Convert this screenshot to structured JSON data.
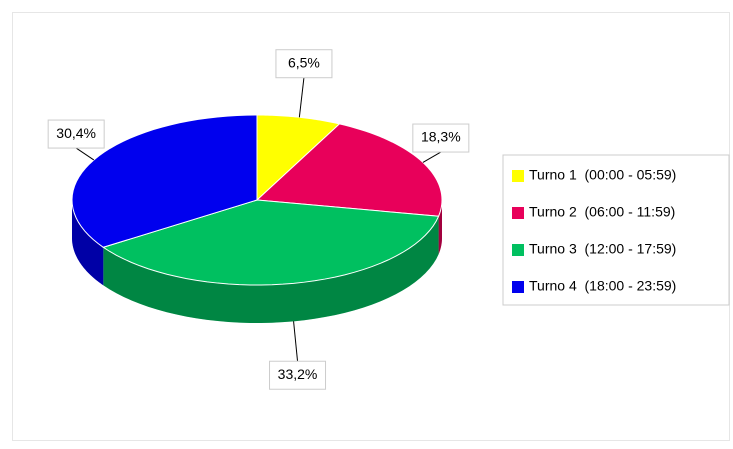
{
  "chart_data": {
    "type": "pie3d",
    "categories": [
      "Turno 1  (00:00 - 05:59)",
      "Turno 2  (06:00 - 11:59)",
      "Turno 3  (12:00 - 17:59)",
      "Turno 4  (18:00 - 23:59)"
    ],
    "values": [
      6.5,
      18.3,
      33.2,
      30.4
    ],
    "value_labels": [
      "6,5%",
      "18,3%",
      "33,2%",
      "30,4%"
    ],
    "colors": [
      "#ffff00",
      "#e8005a",
      "#00c060",
      "#0000ee"
    ],
    "legend": "right"
  }
}
